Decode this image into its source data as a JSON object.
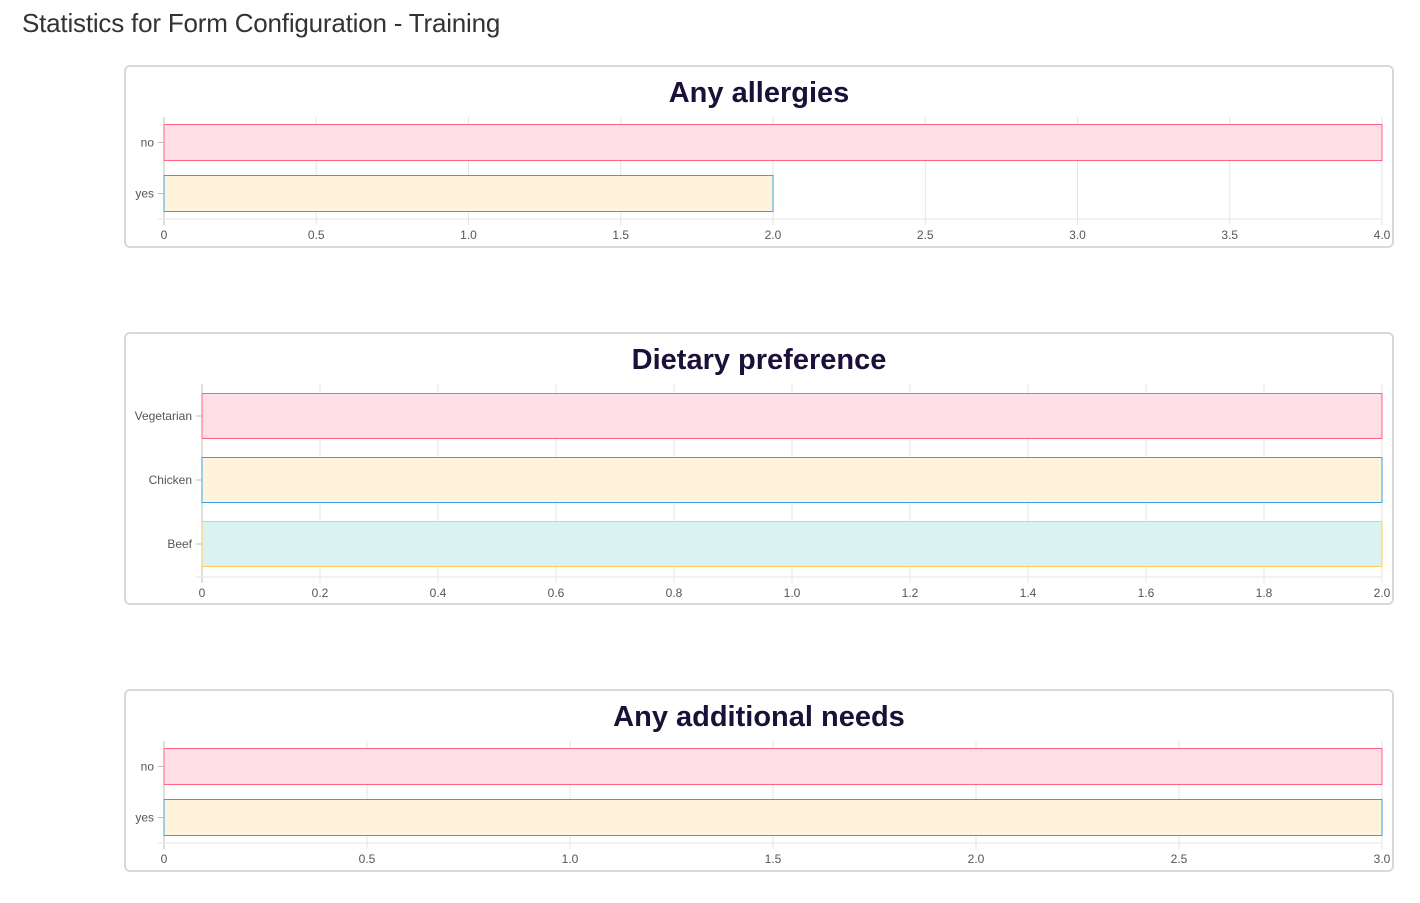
{
  "page": {
    "title": "Statistics for Form Configuration - Training"
  },
  "chart_data": [
    {
      "type": "bar",
      "orientation": "horizontal",
      "title": "Any allergies",
      "categories": [
        "no",
        "yes"
      ],
      "values": [
        4,
        2
      ],
      "xlim": [
        0,
        4
      ],
      "ticks": [
        "0",
        "0.5",
        "1.0",
        "1.5",
        "2.0",
        "2.5",
        "3.0",
        "3.5",
        "4.0"
      ],
      "grid": true,
      "legend": "none",
      "colors": [
        {
          "fill": "#ffdfe6",
          "stroke": "#ff6384"
        },
        {
          "fill": "#fff3dc",
          "stroke": "#36a2eb"
        }
      ]
    },
    {
      "type": "bar",
      "orientation": "horizontal",
      "title": "Dietary preference",
      "categories": [
        "Vegetarian",
        "Chicken",
        "Beef"
      ],
      "values": [
        2,
        2,
        2
      ],
      "xlim": [
        0,
        2
      ],
      "ticks": [
        "0",
        "0.2",
        "0.4",
        "0.6",
        "0.8",
        "1.0",
        "1.2",
        "1.4",
        "1.6",
        "1.8",
        "2.0"
      ],
      "grid": true,
      "legend": "none",
      "colors": [
        {
          "fill": "#ffdfe6",
          "stroke": "#ff6384"
        },
        {
          "fill": "#fff3dc",
          "stroke": "#36a2eb"
        },
        {
          "fill": "#dbf2f2",
          "stroke": "#ffce56"
        }
      ]
    },
    {
      "type": "bar",
      "orientation": "horizontal",
      "title": "Any additional needs",
      "categories": [
        "no",
        "yes"
      ],
      "values": [
        3,
        3
      ],
      "xlim": [
        0,
        3
      ],
      "ticks": [
        "0",
        "0.5",
        "1.0",
        "1.5",
        "2.0",
        "2.5",
        "3.0"
      ],
      "grid": true,
      "legend": "none",
      "colors": [
        {
          "fill": "#ffdfe6",
          "stroke": "#ff6384"
        },
        {
          "fill": "#fff3dc",
          "stroke": "#36a2eb"
        }
      ]
    }
  ]
}
